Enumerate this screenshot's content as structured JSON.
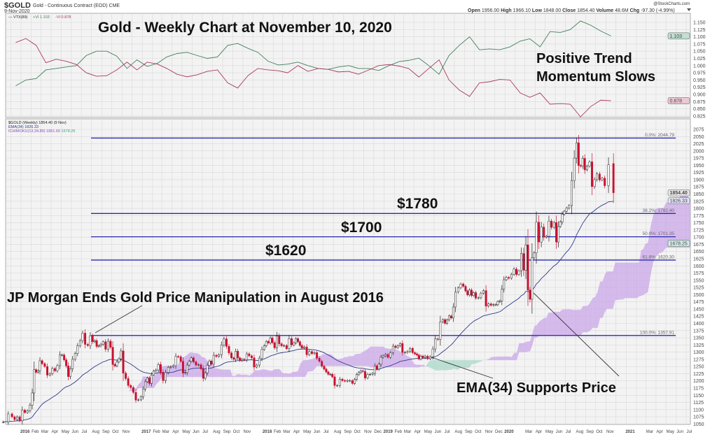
{
  "header": {
    "symbol": "$GOLD",
    "description": "Gold - Continuous Contract (EOD) CME",
    "date": "9-Nov-2020",
    "watermark": "@StockCharts.com",
    "stats": [
      {
        "label": "Open",
        "value": "1956.00"
      },
      {
        "label": "High",
        "value": "1966.10"
      },
      {
        "label": "Low",
        "value": "1848.00"
      },
      {
        "label": "Close",
        "value": "1854.40"
      },
      {
        "label": "Volume",
        "value": "48.6M"
      },
      {
        "label": "Chg",
        "value": "-97.30 (-4.99%)"
      }
    ],
    "menu_icon": "caret-down-icon"
  },
  "annotations": {
    "title": "Gold - Weekly Chart at November 10, 2020",
    "momentum_line1": "Positive Trend",
    "momentum_line2": "Momentum Slows",
    "level_1780": "$1780",
    "level_1700": "$1700",
    "level_1620": "$1620",
    "jp_morgan": "JP Morgan Ends Gold Price Manipulation in August 2016",
    "ema_support": "EMA(34) Supports Price"
  },
  "chart_data": [
    {
      "type": "line",
      "panel": "indicator",
      "legend": {
        "name": "VTX(89)",
        "plus": "+VI 1.103",
        "minus": "-VI 0.878"
      },
      "ylim": [
        0.812,
        1.168
      ],
      "ytick_step": 0.025,
      "grid": true,
      "last_tags": [
        {
          "value": "1.103",
          "color": "#bfe0d2"
        },
        {
          "value": "0.878",
          "color": "#ecc8d4"
        }
      ],
      "colors": {
        "plus": "#3f7f5a",
        "minus": "#a8395e"
      },
      "series": [
        {
          "name": "+VI",
          "months": [
            "2015-12",
            "2016-01",
            "2016-02",
            "2016-03",
            "2016-04",
            "2016-05",
            "2016-06",
            "2016-07",
            "2016-08",
            "2016-09",
            "2016-10",
            "2016-11",
            "2016-12",
            "2017-01",
            "2017-02",
            "2017-03",
            "2017-04",
            "2017-05",
            "2017-06",
            "2017-07",
            "2017-08",
            "2017-09",
            "2017-10",
            "2017-11",
            "2017-12",
            "2018-01",
            "2018-02",
            "2018-03",
            "2018-04",
            "2018-05",
            "2018-06",
            "2018-07",
            "2018-08",
            "2018-09",
            "2018-10",
            "2018-11",
            "2018-12",
            "2019-01",
            "2019-02",
            "2019-03",
            "2019-04",
            "2019-05",
            "2019-06",
            "2019-07",
            "2019-08",
            "2019-09",
            "2019-10",
            "2019-11",
            "2019-12",
            "2020-01",
            "2020-02",
            "2020-03",
            "2020-04",
            "2020-05",
            "2020-06",
            "2020-07",
            "2020-08",
            "2020-09",
            "2020-10",
            "2020-11"
          ],
          "values": [
            0.93,
            0.95,
            0.955,
            0.985,
            0.99,
            0.995,
            1.0,
            1.035,
            1.05,
            1.05,
            1.033,
            0.99,
            1.02,
            0.997,
            1.008,
            1.03,
            1.042,
            1.046,
            1.035,
            1.025,
            1.03,
            1.07,
            1.077,
            1.06,
            1.046,
            1.015,
            1.002,
            1.005,
            1.012,
            1.0,
            0.99,
            0.987,
            0.995,
            1.0,
            0.99,
            0.99,
            0.983,
            1.0,
            1.014,
            1.018,
            1.026,
            1.0,
            0.97,
            1.035,
            1.07,
            1.1,
            1.055,
            1.058,
            1.055,
            1.065,
            1.085,
            1.093,
            1.065,
            1.118,
            1.115,
            1.125,
            1.155,
            1.14,
            1.12,
            1.103
          ]
        },
        {
          "name": "-VI",
          "months": [
            "2015-12",
            "2016-01",
            "2016-02",
            "2016-03",
            "2016-04",
            "2016-05",
            "2016-06",
            "2016-07",
            "2016-08",
            "2016-09",
            "2016-10",
            "2016-11",
            "2016-12",
            "2017-01",
            "2017-02",
            "2017-03",
            "2017-04",
            "2017-05",
            "2017-06",
            "2017-07",
            "2017-08",
            "2017-09",
            "2017-10",
            "2017-11",
            "2017-12",
            "2018-01",
            "2018-02",
            "2018-03",
            "2018-04",
            "2018-05",
            "2018-06",
            "2018-07",
            "2018-08",
            "2018-09",
            "2018-10",
            "2018-11",
            "2018-12",
            "2019-01",
            "2019-02",
            "2019-03",
            "2019-04",
            "2019-05",
            "2019-06",
            "2019-07",
            "2019-08",
            "2019-09",
            "2019-10",
            "2019-11",
            "2019-12",
            "2020-01",
            "2020-02",
            "2020-03",
            "2020-04",
            "2020-05",
            "2020-06",
            "2020-07",
            "2020-08",
            "2020-09",
            "2020-10",
            "2020-11"
          ],
          "values": [
            1.08,
            1.094,
            1.07,
            1.01,
            1.022,
            1.015,
            1.004,
            0.975,
            0.963,
            0.965,
            0.985,
            1.012,
            0.985,
            1.012,
            1.005,
            0.99,
            0.97,
            0.961,
            0.968,
            0.98,
            0.985,
            0.94,
            0.922,
            0.965,
            0.99,
            0.985,
            0.982,
            0.975,
            1.0,
            0.98,
            0.99,
            0.987,
            0.978,
            0.98,
            0.97,
            0.985,
            1.0,
            1.004,
            0.998,
            0.99,
            0.96,
            0.99,
            1.02,
            0.95,
            0.915,
            0.893,
            0.94,
            0.944,
            0.952,
            0.95,
            0.905,
            0.89,
            0.905,
            0.866,
            0.868,
            0.866,
            0.822,
            0.858,
            0.88,
            0.878
          ]
        }
      ]
    },
    {
      "type": "candlestick",
      "panel": "price",
      "legend": {
        "price": "$GOLD (Weekly) 1854.40 (9 Nov)",
        "ema": "EMA(34) 1826.33",
        "ichimoku": "ICHIMOKU(13,34,89) 1861.60",
        "ichimoku_b": "1678.25"
      },
      "ylim": [
        1040,
        2098
      ],
      "ytick_step": 25,
      "grid": true,
      "ema_period": 34,
      "ichimoku_periods": [
        13,
        34,
        89
      ],
      "colors": {
        "up": "#ffffff",
        "down": "#c8102e",
        "ema": "#2e3a8c",
        "cloud_bull": "#c9a6e8",
        "cloud_bear": "#a8d8c8",
        "level": "#2b2bb0"
      },
      "last_tags": [
        {
          "value": "1854.40",
          "price": 1854.4,
          "color": "#e8e8e8"
        },
        {
          "value": "1826.33",
          "price": 1826.33,
          "color": "#dfe3f3"
        },
        {
          "value": "1678.25",
          "price": 1678.25,
          "color": "#cfeee4"
        }
      ],
      "fib_levels": [
        {
          "label": "0.0%: 2044.79",
          "value": 2044.79
        },
        {
          "label": "38.2%: 1782.40",
          "value": 1782.4
        },
        {
          "label": "50.0%: 1701.35",
          "value": 1701.35
        },
        {
          "label": "61.8%: 1620.30",
          "value": 1620.3
        },
        {
          "label": "100.0%: 1357.91",
          "value": 1357.91
        }
      ],
      "weekly_closes": {
        "2015-11": [
          1057,
          1085
        ],
        "2015-12": [
          1075,
          1065,
          1075,
          1061
        ],
        "2016-01": [
          1098,
          1090,
          1096,
          1116
        ],
        "2016-02": [
          1158,
          1239,
          1230,
          1235,
          1270
        ],
        "2016-03": [
          1260,
          1250,
          1220,
          1225
        ],
        "2016-04": [
          1243,
          1235,
          1253,
          1290
        ],
        "2016-05": [
          1290,
          1273,
          1252,
          1215,
          1242
        ],
        "2016-06": [
          1275,
          1295,
          1322,
          1340
        ],
        "2016-07": [
          1366,
          1327,
          1323,
          1357
        ],
        "2016-08": [
          1336,
          1340,
          1320,
          1322,
          1327
        ],
        "2016-09": [
          1336,
          1310,
          1338,
          1317
        ],
        "2016-10": [
          1257,
          1252,
          1266,
          1277,
          1304
        ],
        "2016-11": [
          1227,
          1208,
          1184,
          1177
        ],
        "2016-12": [
          1160,
          1133,
          1134,
          1145
        ],
        "2017-01": [
          1172,
          1197,
          1210,
          1191,
          1220
        ],
        "2017-02": [
          1234,
          1238,
          1257,
          1230
        ],
        "2017-03": [
          1201,
          1229,
          1247,
          1249
        ],
        "2017-04": [
          1253,
          1285,
          1284,
          1268
        ],
        "2017-05": [
          1227,
          1229,
          1255,
          1268,
          1280
        ],
        "2017-06": [
          1266,
          1255,
          1256,
          1242
        ],
        "2017-07": [
          1209,
          1228,
          1254,
          1269,
          1258
        ],
        "2017-08": [
          1289,
          1285,
          1291,
          1325
        ],
        "2017-09": [
          1346,
          1320,
          1297,
          1280
        ],
        "2017-10": [
          1275,
          1303,
          1280,
          1271,
          1275
        ],
        "2017-11": [
          1273,
          1294,
          1287,
          1280
        ],
        "2017-12": [
          1248,
          1255,
          1279,
          1309
        ],
        "2018-01": [
          1322,
          1337,
          1332,
          1349,
          1333
        ],
        "2018-02": [
          1315,
          1356,
          1329,
          1322
        ],
        "2018-03": [
          1323,
          1312,
          1347,
          1325
        ],
        "2018-04": [
          1332,
          1347,
          1336,
          1323,
          1314
        ],
        "2018-05": [
          1318,
          1291,
          1302,
          1295
        ],
        "2018-06": [
          1298,
          1279,
          1268,
          1251
        ],
        "2018-07": [
          1241,
          1231,
          1223,
          1223,
          1214
        ],
        "2018-08": [
          1184,
          1184,
          1206,
          1201
        ],
        "2018-09": [
          1199,
          1201,
          1201,
          1191
        ],
        "2018-10": [
          1205,
          1222,
          1229,
          1235,
          1233
        ],
        "2018-11": [
          1210,
          1223,
          1223,
          1226
        ],
        "2018-12": [
          1252,
          1241,
          1258,
          1282,
          1287
        ],
        "2019-01": [
          1292,
          1282,
          1298,
          1321
        ],
        "2019-02": [
          1316,
          1322,
          1330,
          1299
        ],
        "2019-03": [
          1299,
          1302,
          1313,
          1298
        ],
        "2019-04": [
          1294,
          1290,
          1276,
          1286,
          1281
        ],
        "2019-05": [
          1286,
          1277,
          1284,
          1311
        ],
        "2019-06": [
          1346,
          1344,
          1405,
          1413
        ],
        "2019-07": [
          1400,
          1412,
          1426,
          1419,
          1457
        ],
        "2019-08": [
          1509,
          1524,
          1537,
          1529
        ],
        "2019-09": [
          1513,
          1499,
          1516,
          1497,
          1507
        ],
        "2019-10": [
          1488,
          1489,
          1505,
          1514
        ],
        "2019-11": [
          1460,
          1468,
          1463,
          1465
        ],
        "2019-12": [
          1465,
          1476,
          1478,
          1519,
          1552
        ],
        "2020-01": [
          1560,
          1557,
          1571,
          1589
        ],
        "2020-02": [
          1570,
          1583,
          1643,
          1585
        ],
        "2020-03": [
          1673,
          1516,
          1484,
          1628,
          1645
        ],
        "2020-04": [
          1752,
          1683,
          1735,
          1700
        ],
        "2020-05": [
          1703,
          1756,
          1734,
          1751
        ],
        "2020-06": [
          1683,
          1737,
          1753,
          1780,
          1790
        ],
        "2020-07": [
          1801,
          1810,
          1897,
          1975
        ],
        "2020-08": [
          2028,
          1949,
          1947,
          1974,
          1934
        ],
        "2020-09": [
          1947,
          1962,
          1876,
          1900
        ],
        "2020-10": [
          1920,
          1899,
          1905,
          1879
        ],
        "2020-11": [
          1952,
          1854.4
        ]
      },
      "last_open": 1956.0,
      "xticks": [
        {
          "date": "2016-01",
          "label": "2016",
          "year": true
        },
        {
          "date": "2016-02",
          "label": "Feb"
        },
        {
          "date": "2016-03",
          "label": "Mar"
        },
        {
          "date": "2016-04",
          "label": "Apr"
        },
        {
          "date": "2016-05",
          "label": "May"
        },
        {
          "date": "2016-06",
          "label": "Jun"
        },
        {
          "date": "2016-07",
          "label": "Jul"
        },
        {
          "date": "2016-08",
          "label": "Aug"
        },
        {
          "date": "2016-09",
          "label": "Sep"
        },
        {
          "date": "2016-10",
          "label": "Oct"
        },
        {
          "date": "2016-11",
          "label": "Nov"
        },
        {
          "date": "2017-01",
          "label": "2017",
          "year": true
        },
        {
          "date": "2017-02",
          "label": "Feb"
        },
        {
          "date": "2017-03",
          "label": "Mar"
        },
        {
          "date": "2017-04",
          "label": "Apr"
        },
        {
          "date": "2017-05",
          "label": "May"
        },
        {
          "date": "2017-06",
          "label": "Jun"
        },
        {
          "date": "2017-07",
          "label": "Jul"
        },
        {
          "date": "2017-08",
          "label": "Aug"
        },
        {
          "date": "2017-09",
          "label": "Sep"
        },
        {
          "date": "2017-10",
          "label": "Oct"
        },
        {
          "date": "2017-11",
          "label": "Nov"
        },
        {
          "date": "2018-01",
          "label": "2018",
          "year": true
        },
        {
          "date": "2018-02",
          "label": "Feb"
        },
        {
          "date": "2018-03",
          "label": "Mar"
        },
        {
          "date": "2018-04",
          "label": "Apr"
        },
        {
          "date": "2018-05",
          "label": "May"
        },
        {
          "date": "2018-06",
          "label": "Jun"
        },
        {
          "date": "2018-07",
          "label": "Jul"
        },
        {
          "date": "2018-08",
          "label": "Aug"
        },
        {
          "date": "2018-09",
          "label": "Sep"
        },
        {
          "date": "2018-10",
          "label": "Oct"
        },
        {
          "date": "2018-11",
          "label": "Nov"
        },
        {
          "date": "2018-12",
          "label": "Dec"
        },
        {
          "date": "2019-01",
          "label": "2019",
          "year": true
        },
        {
          "date": "2019-02",
          "label": "Feb"
        },
        {
          "date": "2019-03",
          "label": "Mar"
        },
        {
          "date": "2019-04",
          "label": "Apr"
        },
        {
          "date": "2019-05",
          "label": "May"
        },
        {
          "date": "2019-06",
          "label": "Jun"
        },
        {
          "date": "2019-07",
          "label": "Jul"
        },
        {
          "date": "2019-08",
          "label": "Aug"
        },
        {
          "date": "2019-09",
          "label": "Sep"
        },
        {
          "date": "2019-10",
          "label": "Oct"
        },
        {
          "date": "2019-11",
          "label": "Nov"
        },
        {
          "date": "2019-12",
          "label": "Dec"
        },
        {
          "date": "2020-01",
          "label": "2020",
          "year": true
        },
        {
          "date": "2020-03",
          "label": "Mar"
        },
        {
          "date": "2020-04",
          "label": "Apr"
        },
        {
          "date": "2020-05",
          "label": "May"
        },
        {
          "date": "2020-06",
          "label": "Jun"
        },
        {
          "date": "2020-07",
          "label": "Jul"
        },
        {
          "date": "2020-08",
          "label": "Aug"
        },
        {
          "date": "2020-09",
          "label": "Sep"
        },
        {
          "date": "2020-10",
          "label": "Oct"
        },
        {
          "date": "2020-11",
          "label": "Nov"
        },
        {
          "date": "2021-01",
          "label": "2021",
          "year": true
        },
        {
          "date": "2021-03",
          "label": "Mar"
        },
        {
          "date": "2021-04",
          "label": "Apr"
        },
        {
          "date": "2021-05",
          "label": "May"
        },
        {
          "date": "2021-06",
          "label": "Jun"
        },
        {
          "date": "2021-07",
          "label": "Jul"
        }
      ]
    }
  ]
}
